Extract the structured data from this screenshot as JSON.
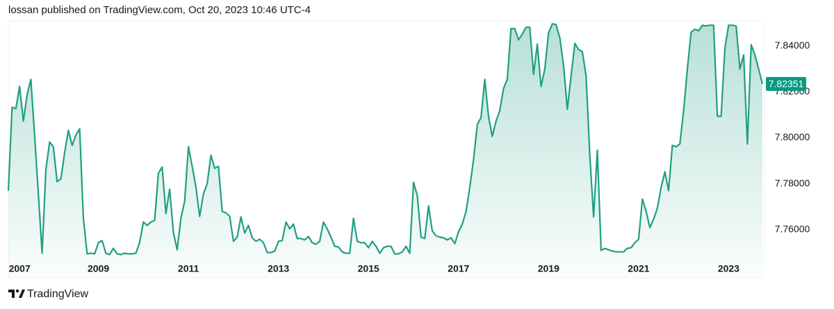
{
  "header": {
    "text": "lossan published on TradingView.com, Oct 20, 2023 10:46 UTC-4"
  },
  "footer": {
    "brand": "TradingView"
  },
  "chart_data": {
    "type": "area",
    "color": "#1f9e82",
    "grid": false,
    "ylim": [
      7.739,
      7.851
    ],
    "yticks": [
      {
        "value": 7.76,
        "label": "7.76000"
      },
      {
        "value": 7.78,
        "label": "7.78000"
      },
      {
        "value": 7.8,
        "label": "7.80000"
      },
      {
        "value": 7.82,
        "label": "7.82000"
      },
      {
        "value": 7.84,
        "label": "7.84000"
      }
    ],
    "last_price": 7.82351,
    "categories": [
      null,
      null,
      null,
      "2007",
      null,
      null,
      null,
      null,
      null,
      null,
      null,
      null,
      null,
      null,
      null,
      null,
      null,
      null,
      null,
      null,
      null,
      null,
      null,
      null,
      "2009",
      null,
      null,
      null,
      null,
      null,
      null,
      null,
      null,
      null,
      null,
      null,
      null,
      null,
      null,
      null,
      null,
      null,
      null,
      null,
      null,
      null,
      null,
      null,
      "2011",
      null,
      null,
      null,
      null,
      null,
      null,
      null,
      null,
      null,
      null,
      null,
      null,
      null,
      null,
      null,
      null,
      null,
      null,
      null,
      null,
      null,
      null,
      null,
      "2013",
      null,
      null,
      null,
      null,
      null,
      null,
      null,
      null,
      null,
      null,
      null,
      null,
      null,
      null,
      null,
      null,
      null,
      null,
      null,
      null,
      null,
      null,
      null,
      "2015",
      null,
      null,
      null,
      null,
      null,
      null,
      null,
      null,
      null,
      null,
      null,
      null,
      null,
      null,
      null,
      null,
      null,
      null,
      null,
      null,
      null,
      null,
      null,
      "2017",
      null,
      null,
      null,
      null,
      null,
      null,
      null,
      null,
      null,
      null,
      null,
      null,
      null,
      null,
      null,
      null,
      null,
      null,
      null,
      null,
      null,
      null,
      null,
      "2019",
      null,
      null,
      null,
      null,
      null,
      null,
      null,
      null,
      null,
      null,
      null,
      null,
      null,
      null,
      null,
      null,
      null,
      null,
      null,
      null,
      null,
      null,
      null,
      "2021",
      null,
      null,
      null,
      null,
      null,
      null,
      null,
      null,
      null,
      null,
      null,
      null,
      null,
      null,
      null,
      null,
      null,
      null,
      null,
      null,
      null,
      null,
      null,
      "2023",
      null,
      null,
      null,
      null,
      null,
      null,
      null,
      null,
      null
    ],
    "values": [
      7.777,
      7.8133,
      7.8127,
      7.8224,
      7.8073,
      7.8188,
      7.8255,
      7.8012,
      7.7755,
      7.7497,
      7.7861,
      7.7982,
      7.7961,
      7.7809,
      7.7821,
      7.7936,
      7.8033,
      7.7967,
      7.8012,
      7.8039,
      7.7649,
      7.7494,
      7.7497,
      7.7494,
      7.7543,
      7.7552,
      7.7497,
      7.7491,
      7.7518,
      7.7494,
      7.7491,
      7.7497,
      7.7494,
      7.7494,
      7.7497,
      7.7543,
      7.7633,
      7.7618,
      7.7633,
      7.764,
      7.7846,
      7.7873,
      7.767,
      7.7776,
      7.7588,
      7.7512,
      7.7649,
      7.7724,
      7.7961,
      7.7876,
      7.7785,
      7.7658,
      7.7755,
      7.78,
      7.7924,
      7.7867,
      7.7876,
      7.7679,
      7.7673,
      7.7658,
      7.7549,
      7.7567,
      7.7655,
      7.7585,
      7.7618,
      7.7564,
      7.7549,
      7.7558,
      7.7543,
      7.75,
      7.75,
      7.7506,
      7.7549,
      7.7552,
      7.7633,
      7.7603,
      7.7624,
      7.7561,
      7.7561,
      7.7555,
      7.757,
      7.7543,
      7.7536,
      7.7549,
      7.7633,
      7.7603,
      7.7567,
      7.7527,
      7.7524,
      7.7503,
      7.7497,
      7.7497,
      7.7649,
      7.7549,
      7.7543,
      7.7543,
      7.7521,
      7.7549,
      7.7527,
      7.7497,
      7.7521,
      7.7527,
      7.7527,
      7.7494,
      7.7494,
      7.7503,
      7.7527,
      7.7497,
      7.7806,
      7.7748,
      7.7567,
      7.7561,
      7.7703,
      7.7594,
      7.7573,
      7.7567,
      7.7564,
      7.7555,
      7.7564,
      7.7539,
      7.7591,
      7.7624,
      7.7679,
      7.7785,
      7.7906,
      7.8058,
      7.8088,
      7.8255,
      7.8094,
      7.8006,
      7.8073,
      7.8118,
      7.8215,
      7.8255,
      7.8476,
      7.8476,
      7.8427,
      7.8452,
      7.8482,
      7.8482,
      7.8276,
      7.8409,
      7.8224,
      7.83,
      7.8458,
      7.8497,
      7.8494,
      7.8436,
      7.8315,
      7.8124,
      7.827,
      7.8412,
      7.8385,
      7.8376,
      7.827,
      7.7921,
      7.7655,
      7.7946,
      7.7509,
      7.7518,
      7.7512,
      7.7506,
      7.7503,
      7.7503,
      7.7503,
      7.7518,
      7.7521,
      7.7543,
      7.7558,
      7.7733,
      7.7679,
      7.7609,
      7.7646,
      7.7694,
      7.7785,
      7.7852,
      7.777,
      7.7967,
      7.7961,
      7.7973,
      7.8118,
      7.83,
      7.8461,
      7.8473,
      7.8467,
      7.8491,
      7.8488,
      7.8491,
      7.8491,
      7.8094,
      7.8094,
      7.8391,
      7.8491,
      7.8491,
      7.8488,
      7.83,
      7.8361,
      7.7973,
      7.8406,
      7.8361,
      7.83,
      7.82351
    ]
  }
}
